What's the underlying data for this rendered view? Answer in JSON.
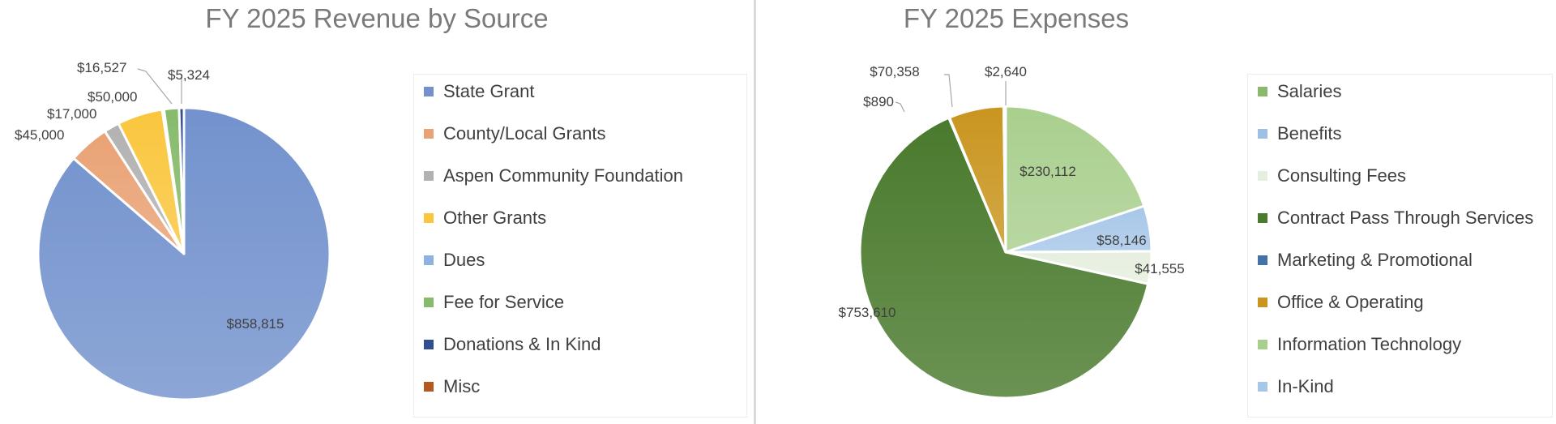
{
  "charts": {
    "revenue": {
      "title": "FY 2025 Revenue by Source",
      "legend": [
        {
          "label": "State Grant",
          "color": "#7392cd"
        },
        {
          "label": "County/Local Grants",
          "color": "#e9a274"
        },
        {
          "label": "Aspen Community Foundation",
          "color": "#b2b2b2"
        },
        {
          "label": "Other Grants",
          "color": "#fac63d"
        },
        {
          "label": "Dues",
          "color": "#8fb2e0"
        },
        {
          "label": "Fee for Service",
          "color": "#86bb6b"
        },
        {
          "label": "Donations & In Kind",
          "color": "#2f4f90"
        },
        {
          "label": "Misc",
          "color": "#b25a1f"
        }
      ]
    },
    "expenses": {
      "title": "FY 2025 Expenses",
      "legend": [
        {
          "label": "Salaries",
          "color": "#8cb86e"
        },
        {
          "label": "Benefits",
          "color": "#9fbfe6"
        },
        {
          "label": "Consulting Fees",
          "color": "#e6efdf"
        },
        {
          "label": "Contract Pass Through Services",
          "color": "#4a7a2d"
        },
        {
          "label": "Marketing & Promotional",
          "color": "#4471a8"
        },
        {
          "label": "Office & Operating",
          "color": "#c9951f"
        },
        {
          "label": "Information Technology",
          "color": "#a9cf8e"
        },
        {
          "label": "In-Kind",
          "color": "#a7c7e8"
        }
      ]
    }
  },
  "chart_data": [
    {
      "type": "pie",
      "title": "FY 2025 Revenue by Source",
      "legend_position": "right",
      "slices": [
        {
          "label": "State Grant",
          "value": 858815,
          "data_label": "$858,815"
        },
        {
          "label": "County/Local Grants",
          "value": 45000,
          "data_label": "$45,000"
        },
        {
          "label": "Aspen Community Foundation",
          "value": 17000,
          "data_label": "$17,000"
        },
        {
          "label": "Other Grants",
          "value": 50000,
          "data_label": "$50,000"
        },
        {
          "label": "Dues",
          "value": 2000,
          "data_label": ""
        },
        {
          "label": "Fee for Service",
          "value": 16527,
          "data_label": "$16,527"
        },
        {
          "label": "Donations & In Kind",
          "value": 5324,
          "data_label": "$5,324"
        },
        {
          "label": "Misc",
          "value": 0,
          "data_label": ""
        }
      ]
    },
    {
      "type": "pie",
      "title": "FY 2025 Expenses",
      "legend_position": "right",
      "slices": [
        {
          "label": "Salaries",
          "value": 0,
          "data_label": ""
        },
        {
          "label": "Benefits",
          "value": 0,
          "data_label": ""
        },
        {
          "label": "Information Technology",
          "value": 230112,
          "data_label": "$230,112"
        },
        {
          "label": "In-Kind",
          "value": 58146,
          "data_label": "$58,146"
        },
        {
          "label": "Consulting Fees",
          "value": 41555,
          "data_label": "$41,555"
        },
        {
          "label": "Contract Pass Through Services",
          "value": 753610,
          "data_label": "$753,610"
        },
        {
          "label": "Marketing & Promotional",
          "value": 890,
          "data_label": "$890"
        },
        {
          "label": "Office & Operating",
          "value": 70358,
          "data_label": "$70,358"
        },
        {
          "label": "Salaries",
          "value": 2640,
          "data_label": "$2,640"
        }
      ]
    }
  ]
}
